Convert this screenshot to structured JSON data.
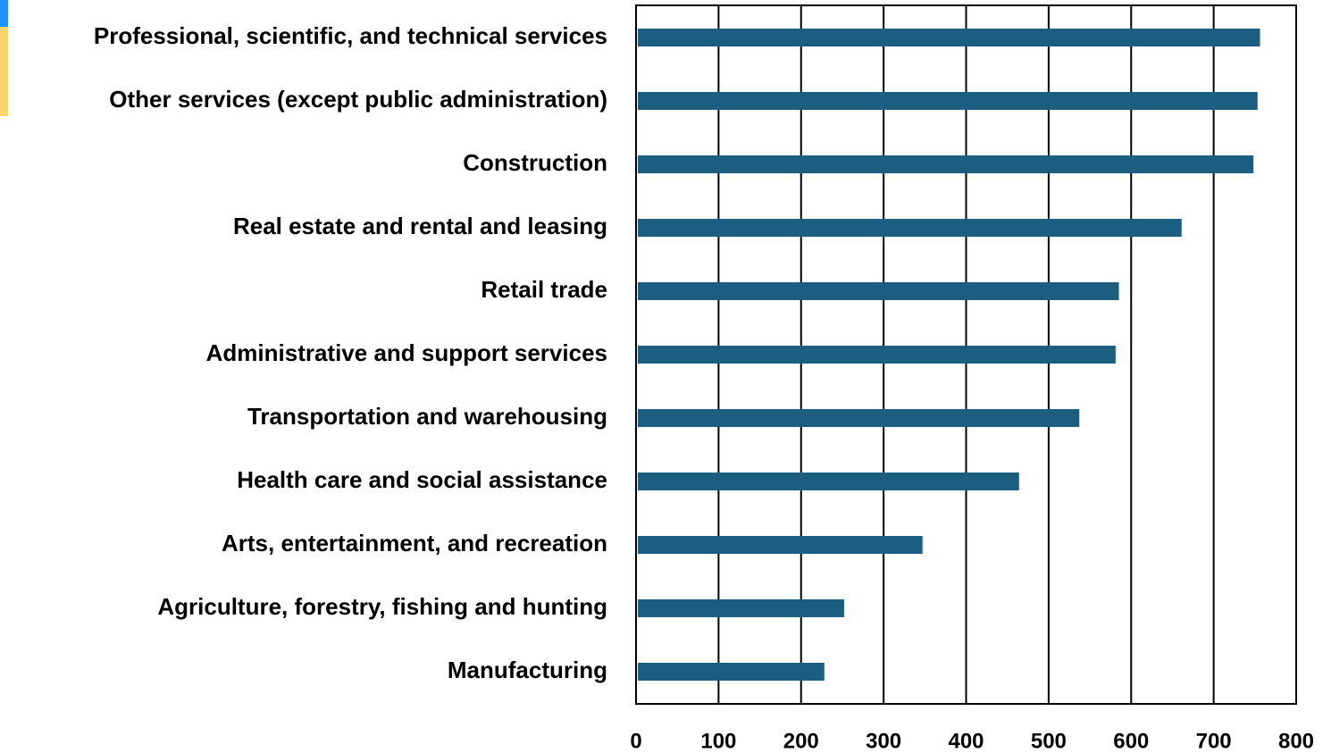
{
  "chart_data": {
    "type": "barh",
    "categories": [
      "Professional, scientific, and technical services",
      "Other services (except public administration)",
      "Construction",
      "Real estate and rental and leasing",
      "Retail trade",
      "Administrative and support  services",
      "Transportation and warehousing",
      "Health care and social assistance",
      "Arts, entertainment, and recreation",
      "Agriculture, forestry, fishing and hunting",
      "Manufacturing"
    ],
    "values": [
      754,
      751,
      746,
      659,
      583,
      579,
      535,
      462,
      345,
      250,
      226
    ],
    "color": "#1b5e80",
    "xlim": [
      0,
      800
    ],
    "xticks": [
      0,
      100,
      200,
      300,
      400,
      500,
      600,
      700,
      800
    ],
    "grid": true
  }
}
